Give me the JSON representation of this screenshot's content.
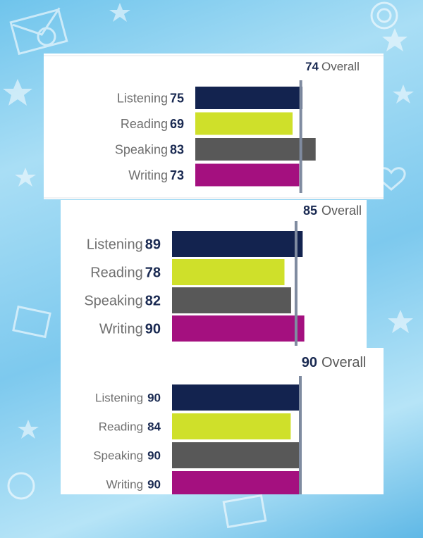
{
  "colors": {
    "listening": "#13234f",
    "reading": "#cfe02a",
    "speaking": "#585858",
    "writing": "#a4107f",
    "overall_line": "#7f8ba0",
    "background": "#8fd3f1"
  },
  "chart_data": [
    {
      "type": "bar",
      "orientation": "horizontal",
      "overall": {
        "value": 74,
        "label": "Overall"
      },
      "categories": [
        "Listening",
        "Reading",
        "Speaking",
        "Writing"
      ],
      "values": [
        75,
        69,
        83,
        73
      ],
      "xlim": [
        10,
        90
      ]
    },
    {
      "type": "bar",
      "orientation": "horizontal",
      "overall": {
        "value": 85,
        "label": "Overall"
      },
      "categories": [
        "Listening",
        "Reading",
        "Speaking",
        "Writing"
      ],
      "values": [
        89,
        78,
        82,
        90
      ],
      "xlim": [
        10,
        90
      ]
    },
    {
      "type": "bar",
      "orientation": "horizontal",
      "overall": {
        "value": 90,
        "label": "Overall"
      },
      "categories": [
        "Listening",
        "Reading",
        "Speaking",
        "Writing"
      ],
      "values": [
        90,
        84,
        90,
        90
      ],
      "xlim": [
        10,
        90
      ]
    }
  ]
}
